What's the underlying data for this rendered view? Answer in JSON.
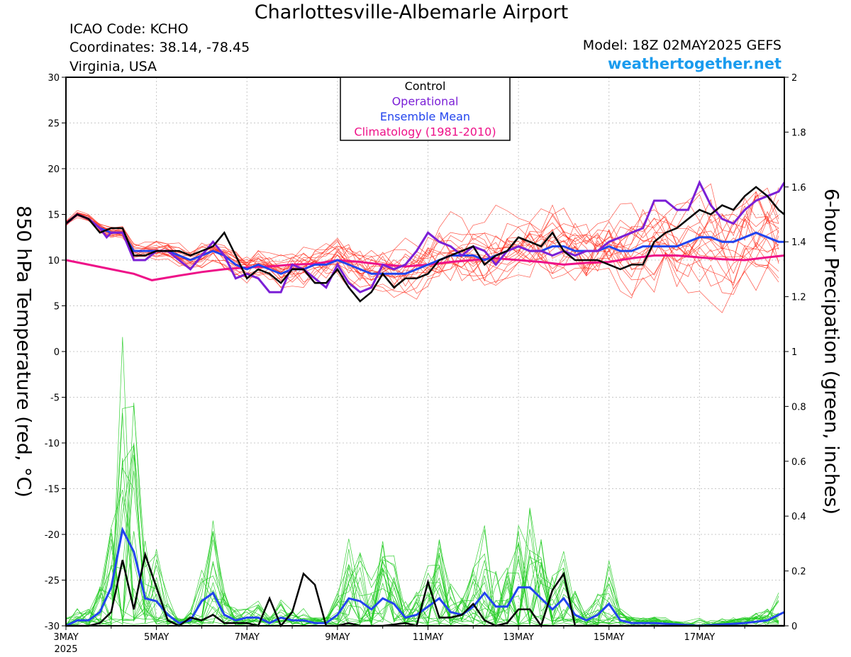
{
  "header": {
    "title": "Charlottesville-Albemarle Airport",
    "icao": "ICAO Code: KCHO",
    "coords": "Coordinates: 38.14, -78.45",
    "location": "Virginia, USA",
    "model": "Model: 18Z 02MAY2025 GEFS",
    "site": "weathertogether.net"
  },
  "colors": {
    "control": "#000000",
    "operational": "#7b1fd6",
    "ensemble_mean": "#2244ee",
    "climatology": "#ee1188",
    "member_temp": "#ff2a1a",
    "member_precip": "#22cc22",
    "site": "#1a9bee"
  },
  "chart_data": {
    "type": "line",
    "left_axis": {
      "label": "850 hPa Temperature (red, °C)",
      "range": [
        -30,
        30
      ],
      "ticks": [
        "30",
        "25",
        "20",
        "15",
        "10",
        "5",
        "0",
        "-5",
        "-10",
        "-15",
        "-20",
        "-25",
        "-30"
      ]
    },
    "right_axis": {
      "label": "6-hour Precipation (green, inches)",
      "range": [
        0,
        2
      ],
      "ticks": [
        "2",
        "1.8",
        "1.6",
        "1.4",
        "1.2",
        "1",
        "0.8",
        "0.6",
        "0.4",
        "0.2",
        "0"
      ]
    },
    "x_axis": {
      "range_days": [
        3.0,
        18.875
      ],
      "ticks": [
        "3MAY",
        "5MAY",
        "7MAY",
        "9MAY",
        "11MAY",
        "13MAY",
        "15MAY",
        "17MAY"
      ],
      "year": "2025"
    },
    "grid": true,
    "legend": {
      "placement": "top-center",
      "items": [
        "Control",
        "Operational",
        "Ensemble Mean",
        "Climatology (1981-2010)"
      ]
    },
    "series_temperature": {
      "control": [
        [
          3.0,
          14.0
        ],
        [
          3.25,
          15.0
        ],
        [
          3.5,
          14.5
        ],
        [
          3.75,
          13.0
        ],
        [
          4.0,
          13.5
        ],
        [
          4.25,
          13.5
        ],
        [
          4.5,
          10.5
        ],
        [
          4.75,
          10.5
        ],
        [
          5.0,
          11.0
        ],
        [
          5.25,
          11.0
        ],
        [
          5.5,
          11.0
        ],
        [
          5.75,
          10.5
        ],
        [
          6.0,
          11.0
        ],
        [
          6.25,
          11.5
        ],
        [
          6.5,
          13.0
        ],
        [
          6.75,
          10.5
        ],
        [
          7.0,
          8.0
        ],
        [
          7.25,
          9.0
        ],
        [
          7.5,
          8.5
        ],
        [
          7.75,
          7.5
        ],
        [
          8.0,
          9.0
        ],
        [
          8.25,
          9.0
        ],
        [
          8.5,
          7.5
        ],
        [
          8.75,
          7.5
        ],
        [
          9.0,
          9.0
        ],
        [
          9.25,
          7.0
        ],
        [
          9.5,
          5.5
        ],
        [
          9.75,
          6.5
        ],
        [
          10.0,
          8.5
        ],
        [
          10.25,
          7.0
        ],
        [
          10.5,
          8.0
        ],
        [
          10.75,
          8.0
        ],
        [
          11.0,
          8.5
        ],
        [
          11.25,
          10.0
        ],
        [
          11.5,
          10.5
        ],
        [
          11.75,
          11.0
        ],
        [
          12.0,
          11.5
        ],
        [
          12.25,
          9.5
        ],
        [
          12.5,
          10.5
        ],
        [
          12.75,
          11.0
        ],
        [
          13.0,
          12.5
        ],
        [
          13.25,
          12.0
        ],
        [
          13.5,
          11.5
        ],
        [
          13.75,
          13.0
        ],
        [
          14.0,
          11.0
        ],
        [
          14.25,
          10.0
        ],
        [
          14.5,
          10.0
        ],
        [
          14.75,
          10.0
        ],
        [
          15.0,
          9.5
        ],
        [
          15.25,
          9.0
        ],
        [
          15.5,
          9.5
        ],
        [
          15.75,
          9.5
        ],
        [
          16.0,
          12.0
        ],
        [
          16.25,
          13.0
        ],
        [
          16.5,
          13.5
        ],
        [
          16.75,
          14.5
        ],
        [
          17.0,
          15.5
        ],
        [
          17.25,
          15.0
        ],
        [
          17.5,
          16.0
        ],
        [
          17.75,
          15.5
        ],
        [
          18.0,
          17.0
        ],
        [
          18.25,
          18.0
        ],
        [
          18.5,
          17.0
        ],
        [
          18.75,
          15.5
        ],
        [
          18.875,
          15.0
        ]
      ],
      "operational": [
        [
          3.0,
          14.0
        ],
        [
          3.25,
          15.0
        ],
        [
          3.5,
          14.5
        ],
        [
          3.75,
          13.5
        ],
        [
          3.9,
          12.5
        ],
        [
          4.0,
          13.0
        ],
        [
          4.25,
          13.0
        ],
        [
          4.5,
          10.0
        ],
        [
          4.75,
          10.0
        ],
        [
          5.0,
          11.0
        ],
        [
          5.25,
          11.0
        ],
        [
          5.5,
          10.0
        ],
        [
          5.75,
          9.0
        ],
        [
          6.0,
          10.5
        ],
        [
          6.25,
          12.0
        ],
        [
          6.5,
          10.5
        ],
        [
          6.75,
          8.0
        ],
        [
          7.0,
          8.5
        ],
        [
          7.25,
          8.0
        ],
        [
          7.5,
          6.5
        ],
        [
          7.75,
          6.5
        ],
        [
          8.0,
          9.5
        ],
        [
          8.25,
          9.0
        ],
        [
          8.5,
          8.0
        ],
        [
          8.75,
          7.0
        ],
        [
          9.0,
          9.5
        ],
        [
          9.25,
          7.5
        ],
        [
          9.5,
          6.5
        ],
        [
          9.75,
          7.0
        ],
        [
          10.0,
          9.5
        ],
        [
          10.25,
          9.0
        ],
        [
          10.5,
          9.5
        ],
        [
          10.75,
          11.0
        ],
        [
          11.0,
          13.0
        ],
        [
          11.25,
          12.0
        ],
        [
          11.5,
          11.5
        ],
        [
          11.75,
          10.5
        ],
        [
          12.0,
          11.5
        ],
        [
          12.25,
          11.0
        ],
        [
          12.5,
          9.5
        ],
        [
          12.75,
          11.0
        ],
        [
          13.0,
          11.5
        ],
        [
          13.25,
          11.0
        ],
        [
          13.5,
          11.0
        ],
        [
          13.75,
          10.5
        ],
        [
          14.0,
          11.0
        ],
        [
          14.25,
          10.5
        ],
        [
          14.5,
          11.0
        ],
        [
          14.75,
          11.0
        ],
        [
          15.0,
          12.0
        ],
        [
          15.25,
          12.5
        ],
        [
          15.5,
          13.0
        ],
        [
          15.75,
          13.5
        ],
        [
          16.0,
          16.5
        ],
        [
          16.25,
          16.5
        ],
        [
          16.5,
          15.5
        ],
        [
          16.75,
          15.5
        ],
        [
          17.0,
          18.5
        ],
        [
          17.25,
          16.0
        ],
        [
          17.5,
          14.5
        ],
        [
          17.75,
          14.0
        ],
        [
          18.0,
          15.5
        ],
        [
          18.25,
          16.5
        ],
        [
          18.5,
          17.0
        ],
        [
          18.75,
          17.5
        ],
        [
          18.875,
          18.5
        ]
      ],
      "ensemble_mean": [
        [
          3.0,
          14.0
        ],
        [
          3.25,
          15.0
        ],
        [
          3.5,
          14.5
        ],
        [
          3.75,
          13.5
        ],
        [
          4.0,
          13.0
        ],
        [
          4.25,
          13.0
        ],
        [
          4.5,
          11.0
        ],
        [
          4.75,
          11.0
        ],
        [
          5.0,
          11.0
        ],
        [
          5.25,
          11.0
        ],
        [
          5.5,
          10.5
        ],
        [
          5.75,
          10.0
        ],
        [
          6.0,
          10.5
        ],
        [
          6.25,
          11.0
        ],
        [
          6.5,
          10.5
        ],
        [
          6.75,
          9.5
        ],
        [
          7.0,
          9.0
        ],
        [
          7.25,
          9.5
        ],
        [
          7.5,
          9.0
        ],
        [
          7.75,
          8.5
        ],
        [
          8.0,
          9.0
        ],
        [
          8.25,
          9.0
        ],
        [
          8.5,
          9.5
        ],
        [
          8.75,
          9.5
        ],
        [
          9.0,
          10.0
        ],
        [
          9.25,
          9.5
        ],
        [
          9.5,
          9.0
        ],
        [
          9.75,
          8.5
        ],
        [
          10.0,
          8.5
        ],
        [
          10.25,
          8.5
        ],
        [
          10.5,
          8.5
        ],
        [
          10.75,
          9.0
        ],
        [
          11.0,
          9.5
        ],
        [
          11.25,
          10.0
        ],
        [
          11.5,
          10.5
        ],
        [
          11.75,
          10.5
        ],
        [
          12.0,
          10.5
        ],
        [
          12.25,
          10.0
        ],
        [
          12.5,
          10.5
        ],
        [
          12.75,
          11.0
        ],
        [
          13.0,
          11.5
        ],
        [
          13.25,
          11.0
        ],
        [
          13.5,
          11.0
        ],
        [
          13.75,
          11.5
        ],
        [
          14.0,
          11.5
        ],
        [
          14.25,
          11.0
        ],
        [
          14.5,
          11.0
        ],
        [
          14.75,
          11.0
        ],
        [
          15.0,
          11.5
        ],
        [
          15.25,
          11.0
        ],
        [
          15.5,
          11.0
        ],
        [
          15.75,
          11.5
        ],
        [
          16.0,
          11.5
        ],
        [
          16.25,
          11.5
        ],
        [
          16.5,
          11.5
        ],
        [
          16.75,
          12.0
        ],
        [
          17.0,
          12.5
        ],
        [
          17.25,
          12.5
        ],
        [
          17.5,
          12.0
        ],
        [
          17.75,
          12.0
        ],
        [
          18.0,
          12.5
        ],
        [
          18.25,
          13.0
        ],
        [
          18.5,
          12.5
        ],
        [
          18.75,
          12.0
        ],
        [
          18.875,
          12.0
        ]
      ],
      "climatology": [
        [
          3.0,
          10.0
        ],
        [
          3.5,
          9.5
        ],
        [
          4.0,
          9.0
        ],
        [
          4.5,
          8.5
        ],
        [
          4.9,
          7.8
        ],
        [
          5.5,
          8.3
        ],
        [
          6.0,
          8.7
        ],
        [
          6.5,
          9.0
        ],
        [
          7.0,
          9.2
        ],
        [
          7.5,
          9.3
        ],
        [
          8.0,
          9.5
        ],
        [
          8.5,
          9.6
        ],
        [
          9.0,
          10.0
        ],
        [
          9.5,
          9.8
        ],
        [
          10.0,
          9.5
        ],
        [
          10.5,
          9.3
        ],
        [
          11.0,
          9.5
        ],
        [
          11.5,
          9.8
        ],
        [
          12.0,
          10.0
        ],
        [
          12.5,
          10.2
        ],
        [
          13.0,
          10.0
        ],
        [
          13.5,
          9.8
        ],
        [
          14.0,
          9.5
        ],
        [
          14.5,
          9.7
        ],
        [
          15.0,
          9.8
        ],
        [
          15.5,
          10.2
        ],
        [
          16.0,
          10.5
        ],
        [
          16.5,
          10.5
        ],
        [
          17.0,
          10.3
        ],
        [
          17.5,
          10.1
        ],
        [
          18.0,
          10.0
        ],
        [
          18.5,
          10.3
        ],
        [
          18.875,
          10.5
        ]
      ]
    },
    "series_precip": {
      "control": [
        [
          3.0,
          0.0
        ],
        [
          3.5,
          0.0
        ],
        [
          3.75,
          0.01
        ],
        [
          4.0,
          0.05
        ],
        [
          4.25,
          0.24
        ],
        [
          4.5,
          0.06
        ],
        [
          4.75,
          0.26
        ],
        [
          5.0,
          0.14
        ],
        [
          5.25,
          0.02
        ],
        [
          5.5,
          0.0
        ],
        [
          5.75,
          0.03
        ],
        [
          6.0,
          0.02
        ],
        [
          6.25,
          0.04
        ],
        [
          6.5,
          0.01
        ],
        [
          7.0,
          0.01
        ],
        [
          7.25,
          0.0
        ],
        [
          7.5,
          0.1
        ],
        [
          7.75,
          0.0
        ],
        [
          8.0,
          0.05
        ],
        [
          8.25,
          0.19
        ],
        [
          8.5,
          0.15
        ],
        [
          8.75,
          0.0
        ],
        [
          9.0,
          0.0
        ],
        [
          9.25,
          0.01
        ],
        [
          9.5,
          0.0
        ],
        [
          10.0,
          0.0
        ],
        [
          10.5,
          0.01
        ],
        [
          10.75,
          0.0
        ],
        [
          11.0,
          0.16
        ],
        [
          11.25,
          0.03
        ],
        [
          11.5,
          0.03
        ],
        [
          11.75,
          0.04
        ],
        [
          12.0,
          0.08
        ],
        [
          12.25,
          0.02
        ],
        [
          12.5,
          0.0
        ],
        [
          12.75,
          0.01
        ],
        [
          13.0,
          0.06
        ],
        [
          13.25,
          0.06
        ],
        [
          13.5,
          0.0
        ],
        [
          13.75,
          0.13
        ],
        [
          14.0,
          0.19
        ],
        [
          14.25,
          0.0
        ],
        [
          18.875,
          0.0
        ]
      ],
      "ensemble_mean": [
        [
          3.0,
          0.0
        ],
        [
          3.25,
          0.02
        ],
        [
          3.5,
          0.02
        ],
        [
          3.75,
          0.05
        ],
        [
          4.0,
          0.14
        ],
        [
          4.25,
          0.35
        ],
        [
          4.5,
          0.27
        ],
        [
          4.75,
          0.1
        ],
        [
          5.0,
          0.09
        ],
        [
          5.25,
          0.04
        ],
        [
          5.5,
          0.01
        ],
        [
          5.75,
          0.02
        ],
        [
          6.0,
          0.09
        ],
        [
          6.25,
          0.12
        ],
        [
          6.5,
          0.04
        ],
        [
          6.75,
          0.02
        ],
        [
          7.0,
          0.03
        ],
        [
          7.25,
          0.03
        ],
        [
          7.5,
          0.01
        ],
        [
          7.75,
          0.03
        ],
        [
          8.0,
          0.02
        ],
        [
          8.25,
          0.02
        ],
        [
          8.5,
          0.01
        ],
        [
          8.75,
          0.01
        ],
        [
          9.0,
          0.04
        ],
        [
          9.25,
          0.1
        ],
        [
          9.5,
          0.09
        ],
        [
          9.75,
          0.06
        ],
        [
          10.0,
          0.1
        ],
        [
          10.25,
          0.08
        ],
        [
          10.5,
          0.03
        ],
        [
          10.75,
          0.04
        ],
        [
          11.0,
          0.07
        ],
        [
          11.25,
          0.1
        ],
        [
          11.5,
          0.05
        ],
        [
          11.75,
          0.04
        ],
        [
          12.0,
          0.07
        ],
        [
          12.25,
          0.12
        ],
        [
          12.5,
          0.07
        ],
        [
          12.75,
          0.07
        ],
        [
          13.0,
          0.14
        ],
        [
          13.25,
          0.14
        ],
        [
          13.5,
          0.1
        ],
        [
          13.75,
          0.06
        ],
        [
          14.0,
          0.1
        ],
        [
          14.25,
          0.04
        ],
        [
          14.5,
          0.02
        ],
        [
          14.75,
          0.04
        ],
        [
          15.0,
          0.08
        ],
        [
          15.25,
          0.02
        ],
        [
          15.5,
          0.01
        ],
        [
          16.0,
          0.01
        ],
        [
          17.0,
          0.0
        ],
        [
          18.0,
          0.01
        ],
        [
          18.5,
          0.02
        ],
        [
          18.875,
          0.05
        ]
      ]
    }
  }
}
